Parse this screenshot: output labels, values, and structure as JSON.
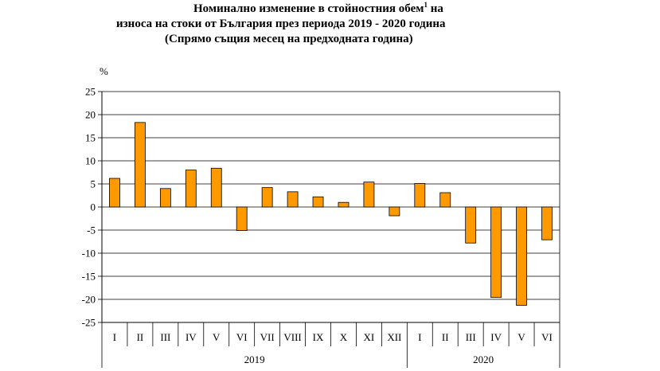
{
  "chart_data": {
    "type": "bar",
    "title_line1": "Номинално изменение в стойностния обем",
    "title_sup": "1",
    "title_line1_tail": " на",
    "title_line2": "износа на стоки от България през периода 2019 - 2020 година",
    "subtitle": "(Спрямо същия месец на предходната година)",
    "ylabel": "%",
    "ylim": [
      -25,
      25
    ],
    "yticks": [
      25,
      20,
      15,
      10,
      5,
      0,
      -5,
      -10,
      -15,
      -20,
      -25
    ],
    "categories": [
      "I",
      "II",
      "III",
      "IV",
      "V",
      "VI",
      "VII",
      "VIII",
      "IX",
      "X",
      "XI",
      "XII",
      "I",
      "II",
      "III",
      "IV",
      "V",
      "VI"
    ],
    "groups": [
      {
        "label": "2019",
        "count": 12
      },
      {
        "label": "2020",
        "count": 6
      }
    ],
    "values": [
      6.2,
      18.3,
      4.0,
      8.0,
      8.4,
      -5.1,
      4.2,
      3.3,
      2.2,
      1.0,
      5.4,
      -1.9,
      5.1,
      3.1,
      -7.8,
      -19.6,
      -21.3,
      -7.1
    ],
    "bar_color": "#FF9900",
    "bar_stroke": "#000000",
    "grid": true
  }
}
